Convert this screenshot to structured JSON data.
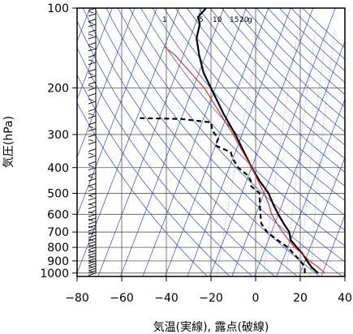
{
  "chart_data": {
    "type": "line",
    "subtype": "skew-T log-P (emagram) diagram",
    "xlabel": "気温(実線), 露点(破線)",
    "ylabel": "気圧(hPa)",
    "xlim": [
      -80,
      40
    ],
    "ylim": [
      1030,
      100
    ],
    "y_scale": "log",
    "x_ticks": [
      -80,
      -60,
      -40,
      -20,
      0,
      20,
      40
    ],
    "x_tick_labels": [
      "−80",
      "−60",
      "−40",
      "−20",
      "0",
      "20",
      "40"
    ],
    "y_ticks": [
      100,
      200,
      300,
      400,
      500,
      600,
      700,
      800,
      900,
      1000
    ],
    "y_tick_labels": [
      "100",
      "200",
      "300",
      "400",
      "500",
      "600",
      "700",
      "800",
      "900",
      "1000"
    ],
    "mixing_ratio_labels": [
      "1",
      "5",
      "10",
      "15",
      "20",
      "g"
    ],
    "colors": {
      "temperature": "#000000",
      "dewpoint": "#000000",
      "parcel": "#e0302a",
      "background_lines": "#3344cc",
      "grid": "#555555",
      "wind_barbs": "#000000"
    },
    "series": [
      {
        "key": "temperature",
        "style": "solid",
        "points": [
          {
            "p": 1000,
            "t": 28
          },
          {
            "p": 950,
            "t": 24
          },
          {
            "p": 900,
            "t": 21
          },
          {
            "p": 850,
            "t": 18
          },
          {
            "p": 800,
            "t": 14
          },
          {
            "p": 750,
            "t": 10
          },
          {
            "p": 700,
            "t": 8
          },
          {
            "p": 650,
            "t": 4
          },
          {
            "p": 600,
            "t": 0
          },
          {
            "p": 550,
            "t": -4
          },
          {
            "p": 500,
            "t": -8
          },
          {
            "p": 450,
            "t": -14
          },
          {
            "p": 400,
            "t": -20
          },
          {
            "p": 350,
            "t": -26
          },
          {
            "p": 300,
            "t": -33
          },
          {
            "p": 250,
            "t": -42
          },
          {
            "p": 200,
            "t": -52
          },
          {
            "p": 175,
            "t": -58
          },
          {
            "p": 150,
            "t": -63
          },
          {
            "p": 130,
            "t": -67
          },
          {
            "p": 115,
            "t": -68
          },
          {
            "p": 108,
            "t": -70
          },
          {
            "p": 104,
            "t": -69
          },
          {
            "p": 100,
            "t": -68
          }
        ]
      },
      {
        "key": "dewpoint",
        "style": "dashed",
        "points": [
          {
            "p": 1000,
            "t": 22
          },
          {
            "p": 950,
            "t": 21
          },
          {
            "p": 900,
            "t": 18
          },
          {
            "p": 850,
            "t": 14
          },
          {
            "p": 800,
            "t": 10
          },
          {
            "p": 750,
            "t": 4
          },
          {
            "p": 700,
            "t": -2
          },
          {
            "p": 650,
            "t": -6
          },
          {
            "p": 600,
            "t": -8
          },
          {
            "p": 550,
            "t": -10
          },
          {
            "p": 500,
            "t": -12
          },
          {
            "p": 470,
            "t": -17
          },
          {
            "p": 450,
            "t": -18
          },
          {
            "p": 430,
            "t": -20
          },
          {
            "p": 400,
            "t": -26
          },
          {
            "p": 370,
            "t": -30
          },
          {
            "p": 350,
            "t": -32
          },
          {
            "p": 330,
            "t": -40
          },
          {
            "p": 310,
            "t": -40
          },
          {
            "p": 290,
            "t": -44
          },
          {
            "p": 270,
            "t": -46
          },
          {
            "p": 262,
            "t": -60
          },
          {
            "p": 260,
            "t": -80
          }
        ]
      },
      {
        "key": "parcel",
        "style": "solid",
        "points": [
          {
            "p": 1000,
            "t": 31
          },
          {
            "p": 950,
            "t": 27
          },
          {
            "p": 900,
            "t": 22
          },
          {
            "p": 850,
            "t": 18
          },
          {
            "p": 800,
            "t": 13
          },
          {
            "p": 750,
            "t": 9
          },
          {
            "p": 700,
            "t": 5
          },
          {
            "p": 650,
            "t": 1
          },
          {
            "p": 600,
            "t": -3
          },
          {
            "p": 550,
            "t": -6
          },
          {
            "p": 500,
            "t": -10
          },
          {
            "p": 400,
            "t": -20
          },
          {
            "p": 300,
            "t": -34
          },
          {
            "p": 200,
            "t": -55
          },
          {
            "p": 150,
            "t": -74
          },
          {
            "p": 140,
            "t": -80
          }
        ]
      }
    ],
    "wind_barb_levels": [
      1000,
      980,
      960,
      940,
      920,
      900,
      880,
      860,
      840,
      820,
      800,
      780,
      760,
      740,
      720,
      700,
      680,
      660,
      640,
      620,
      600,
      580,
      560,
      540,
      520,
      500,
      480,
      460,
      440,
      420,
      400,
      380,
      360,
      340,
      320,
      300,
      285,
      270,
      255,
      240,
      225,
      210,
      200,
      190,
      180,
      170,
      160,
      150,
      142,
      135,
      128,
      121,
      115,
      110,
      105,
      100
    ]
  }
}
